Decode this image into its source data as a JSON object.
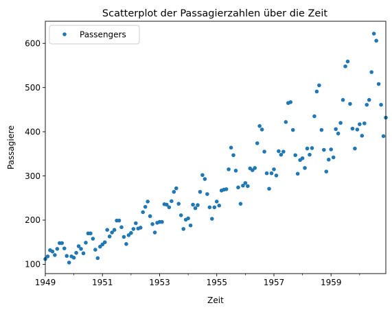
{
  "chart_data": {
    "type": "scatter",
    "title": "Scatterplot der Passagierzahlen  über die Zeit",
    "xlabel": "Zeit",
    "ylabel": "Passagiere",
    "xlim": [
      "1949-01",
      "1960-12"
    ],
    "ylim": [
      79,
      650
    ],
    "x_ticks": [
      "1949",
      "1951",
      "1953",
      "1955",
      "1957",
      "1959"
    ],
    "y_ticks": [
      100,
      200,
      300,
      400,
      500,
      600
    ],
    "grid": false,
    "legend_position": "top-left",
    "series": [
      {
        "name": "Passengers",
        "color": "#1f77b4",
        "x": [
          "1949-01",
          "1949-02",
          "1949-03",
          "1949-04",
          "1949-05",
          "1949-06",
          "1949-07",
          "1949-08",
          "1949-09",
          "1949-10",
          "1949-11",
          "1949-12",
          "1950-01",
          "1950-02",
          "1950-03",
          "1950-04",
          "1950-05",
          "1950-06",
          "1950-07",
          "1950-08",
          "1950-09",
          "1950-10",
          "1950-11",
          "1950-12",
          "1951-01",
          "1951-02",
          "1951-03",
          "1951-04",
          "1951-05",
          "1951-06",
          "1951-07",
          "1951-08",
          "1951-09",
          "1951-10",
          "1951-11",
          "1951-12",
          "1952-01",
          "1952-02",
          "1952-03",
          "1952-04",
          "1952-05",
          "1952-06",
          "1952-07",
          "1952-08",
          "1952-09",
          "1952-10",
          "1952-11",
          "1952-12",
          "1953-01",
          "1953-02",
          "1953-03",
          "1953-04",
          "1953-05",
          "1953-06",
          "1953-07",
          "1953-08",
          "1953-09",
          "1953-10",
          "1953-11",
          "1953-12",
          "1954-01",
          "1954-02",
          "1954-03",
          "1954-04",
          "1954-05",
          "1954-06",
          "1954-07",
          "1954-08",
          "1954-09",
          "1954-10",
          "1954-11",
          "1954-12",
          "1955-01",
          "1955-02",
          "1955-03",
          "1955-04",
          "1955-05",
          "1955-06",
          "1955-07",
          "1955-08",
          "1955-09",
          "1955-10",
          "1955-11",
          "1955-12",
          "1956-01",
          "1956-02",
          "1956-03",
          "1956-04",
          "1956-05",
          "1956-06",
          "1956-07",
          "1956-08",
          "1956-09",
          "1956-10",
          "1956-11",
          "1956-12",
          "1957-01",
          "1957-02",
          "1957-03",
          "1957-04",
          "1957-05",
          "1957-06",
          "1957-07",
          "1957-08",
          "1957-09",
          "1957-10",
          "1957-11",
          "1957-12",
          "1958-01",
          "1958-02",
          "1958-03",
          "1958-04",
          "1958-05",
          "1958-06",
          "1958-07",
          "1958-08",
          "1958-09",
          "1958-10",
          "1958-11",
          "1958-12",
          "1959-01",
          "1959-02",
          "1959-03",
          "1959-04",
          "1959-05",
          "1959-06",
          "1959-07",
          "1959-08",
          "1959-09",
          "1959-10",
          "1959-11",
          "1959-12",
          "1960-01",
          "1960-02",
          "1960-03",
          "1960-04",
          "1960-05",
          "1960-06",
          "1960-07",
          "1960-08",
          "1960-09",
          "1960-10",
          "1960-11",
          "1960-12"
        ],
        "y": [
          112,
          118,
          132,
          129,
          121,
          135,
          148,
          148,
          136,
          119,
          104,
          118,
          115,
          126,
          141,
          135,
          125,
          149,
          170,
          170,
          158,
          133,
          114,
          140,
          145,
          150,
          178,
          163,
          172,
          178,
          199,
          199,
          184,
          162,
          146,
          166,
          171,
          180,
          193,
          181,
          183,
          218,
          230,
          242,
          209,
          191,
          172,
          194,
          196,
          196,
          236,
          235,
          229,
          243,
          264,
          272,
          237,
          211,
          180,
          201,
          204,
          188,
          235,
          227,
          234,
          264,
          302,
          293,
          259,
          229,
          203,
          229,
          242,
          233,
          267,
          269,
          270,
          315,
          364,
          347,
          312,
          274,
          237,
          278,
          284,
          277,
          317,
          313,
          318,
          374,
          413,
          405,
          355,
          306,
          271,
          306,
          315,
          301,
          356,
          348,
          355,
          422,
          465,
          467,
          404,
          347,
          305,
          336,
          340,
          318,
          362,
          348,
          363,
          435,
          491,
          505,
          404,
          359,
          310,
          337,
          360,
          342,
          406,
          396,
          420,
          472,
          548,
          559,
          463,
          407,
          362,
          405,
          417,
          391,
          419,
          461,
          472,
          535,
          622,
          606,
          508,
          461,
          390,
          432
        ]
      }
    ]
  }
}
